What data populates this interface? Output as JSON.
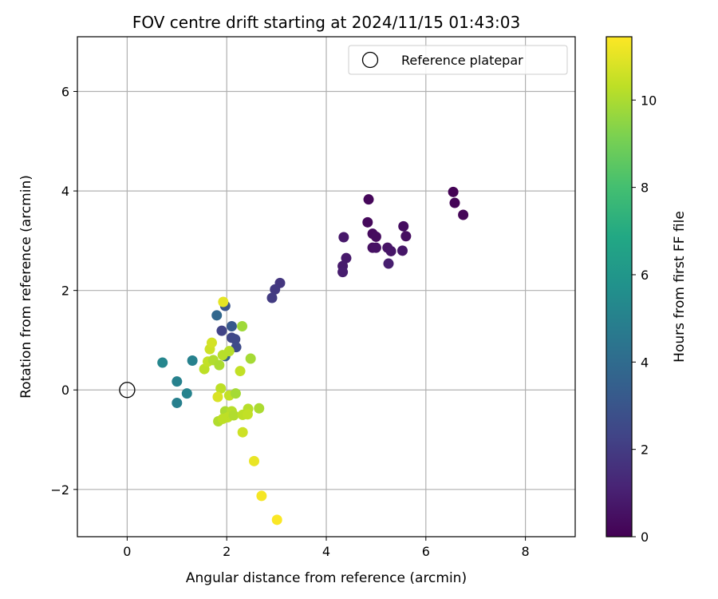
{
  "chart_data": {
    "type": "scatter",
    "title": "FOV centre drift starting at 2024/11/15 01:43:03",
    "xlabel": "Angular distance from reference (arcmin)",
    "ylabel": "Rotation from reference (arcmin)",
    "xlim": [
      -1,
      9
    ],
    "ylim": [
      -2.95,
      7.1
    ],
    "xticks": [
      0,
      2,
      4,
      6,
      8
    ],
    "yticks": [
      -2,
      0,
      2,
      4,
      6
    ],
    "xtick_labels": [
      "0",
      "2",
      "4",
      "6",
      "8"
    ],
    "ytick_labels": [
      "−2",
      "0",
      "2",
      "4",
      "6"
    ],
    "grid": true,
    "legend": {
      "position": "top-right",
      "entries": [
        "Reference platepar"
      ]
    },
    "reference_point": {
      "x": 0,
      "y": 0,
      "label": "Reference platepar"
    },
    "colorbar": {
      "label": "Hours from first FF file",
      "colormap": "viridis",
      "range": [
        0,
        11.45
      ],
      "ticks": [
        0,
        2,
        4,
        6,
        8,
        10
      ],
      "tick_labels": [
        "0",
        "2",
        "4",
        "6",
        "8",
        "10"
      ]
    },
    "points": [
      {
        "x": 6.55,
        "y": 3.98,
        "c": 0.05
      },
      {
        "x": 6.58,
        "y": 3.76,
        "c": 0.1
      },
      {
        "x": 6.75,
        "y": 3.52,
        "c": 0.15
      },
      {
        "x": 4.85,
        "y": 3.83,
        "c": 0.2
      },
      {
        "x": 4.83,
        "y": 3.37,
        "c": 0.25
      },
      {
        "x": 4.93,
        "y": 3.14,
        "c": 0.3
      },
      {
        "x": 5.0,
        "y": 3.08,
        "c": 0.35
      },
      {
        "x": 5.55,
        "y": 3.29,
        "c": 0.4
      },
      {
        "x": 5.6,
        "y": 3.09,
        "c": 0.45
      },
      {
        "x": 4.93,
        "y": 2.86,
        "c": 0.5
      },
      {
        "x": 5.0,
        "y": 2.86,
        "c": 0.55
      },
      {
        "x": 5.23,
        "y": 2.86,
        "c": 0.6
      },
      {
        "x": 5.3,
        "y": 2.79,
        "c": 0.65
      },
      {
        "x": 5.53,
        "y": 2.8,
        "c": 0.7
      },
      {
        "x": 4.35,
        "y": 3.07,
        "c": 0.75
      },
      {
        "x": 4.4,
        "y": 2.65,
        "c": 0.8
      },
      {
        "x": 4.33,
        "y": 2.49,
        "c": 0.85
      },
      {
        "x": 4.33,
        "y": 2.37,
        "c": 0.9
      },
      {
        "x": 5.25,
        "y": 2.54,
        "c": 0.95
      },
      {
        "x": 3.07,
        "y": 2.15,
        "c": 1.8
      },
      {
        "x": 2.97,
        "y": 2.02,
        "c": 1.9
      },
      {
        "x": 2.91,
        "y": 1.85,
        "c": 2.0
      },
      {
        "x": 1.9,
        "y": 1.19,
        "c": 2.3
      },
      {
        "x": 2.1,
        "y": 1.05,
        "c": 2.4
      },
      {
        "x": 2.17,
        "y": 1.02,
        "c": 2.5
      },
      {
        "x": 2.19,
        "y": 0.86,
        "c": 2.6
      },
      {
        "x": 1.97,
        "y": 1.69,
        "c": 3.0
      },
      {
        "x": 2.1,
        "y": 1.28,
        "c": 3.2
      },
      {
        "x": 1.8,
        "y": 1.5,
        "c": 3.8
      },
      {
        "x": 1.97,
        "y": 0.68,
        "c": 3.5
      },
      {
        "x": 1.31,
        "y": 0.59,
        "c": 5.0
      },
      {
        "x": 0.71,
        "y": 0.55,
        "c": 5.2
      },
      {
        "x": 1.0,
        "y": 0.17,
        "c": 5.0
      },
      {
        "x": 1.2,
        "y": -0.07,
        "c": 5.1
      },
      {
        "x": 1.0,
        "y": -0.26,
        "c": 4.9
      },
      {
        "x": 2.31,
        "y": 1.28,
        "c": 9.8
      },
      {
        "x": 2.05,
        "y": 0.78,
        "c": 10.2
      },
      {
        "x": 1.55,
        "y": 0.42,
        "c": 10.3
      },
      {
        "x": 1.62,
        "y": 0.57,
        "c": 10.4
      },
      {
        "x": 1.73,
        "y": 0.6,
        "c": 10.1
      },
      {
        "x": 1.85,
        "y": 0.5,
        "c": 10.0
      },
      {
        "x": 1.92,
        "y": 0.7,
        "c": 10.2
      },
      {
        "x": 1.66,
        "y": 0.82,
        "c": 10.6
      },
      {
        "x": 1.7,
        "y": 0.95,
        "c": 10.7
      },
      {
        "x": 2.48,
        "y": 0.63,
        "c": 9.9
      },
      {
        "x": 2.27,
        "y": 0.38,
        "c": 10.4
      },
      {
        "x": 1.88,
        "y": 0.03,
        "c": 10.3
      },
      {
        "x": 2.05,
        "y": -0.11,
        "c": 10.4
      },
      {
        "x": 2.18,
        "y": -0.07,
        "c": 9.9
      },
      {
        "x": 1.82,
        "y": -0.14,
        "c": 10.8
      },
      {
        "x": 1.97,
        "y": -0.43,
        "c": 10.0
      },
      {
        "x": 2.1,
        "y": -0.43,
        "c": 10.2
      },
      {
        "x": 2.02,
        "y": -0.55,
        "c": 10.3
      },
      {
        "x": 2.14,
        "y": -0.51,
        "c": 10.1
      },
      {
        "x": 2.32,
        "y": -0.5,
        "c": 10.3
      },
      {
        "x": 2.43,
        "y": -0.38,
        "c": 10.2
      },
      {
        "x": 2.42,
        "y": -0.49,
        "c": 10.4
      },
      {
        "x": 2.65,
        "y": -0.37,
        "c": 10.0
      },
      {
        "x": 1.83,
        "y": -0.63,
        "c": 10.1
      },
      {
        "x": 1.92,
        "y": -0.58,
        "c": 10.3
      },
      {
        "x": 2.32,
        "y": -0.85,
        "c": 10.6
      },
      {
        "x": 1.93,
        "y": 1.77,
        "c": 11.0
      },
      {
        "x": 2.55,
        "y": -1.43,
        "c": 11.1
      },
      {
        "x": 2.7,
        "y": -2.13,
        "c": 11.3
      },
      {
        "x": 3.01,
        "y": -2.61,
        "c": 11.4
      }
    ]
  }
}
